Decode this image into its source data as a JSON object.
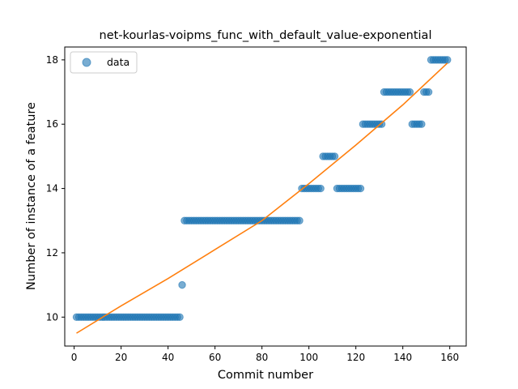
{
  "chart_data": {
    "type": "scatter",
    "title": "net-kourlas-voipms_func_with_default_value-exponential",
    "xlabel": "Commit number",
    "ylabel": "Number of instance of a feature",
    "xlim": [
      -4,
      167
    ],
    "ylim": [
      9.1,
      18.4
    ],
    "xticks": [
      0,
      20,
      40,
      60,
      80,
      100,
      120,
      140,
      160
    ],
    "yticks": [
      10,
      12,
      14,
      16,
      18
    ],
    "grid": false,
    "legend": {
      "placement": "top-left",
      "entries": [
        "data"
      ]
    },
    "colors": {
      "points": "#1f77b4",
      "fit": "#ff7f0e"
    },
    "series": [
      {
        "name": "data",
        "kind": "scatter",
        "segments": [
          {
            "x_from": 1,
            "x_to": 45,
            "y": 10
          },
          {
            "x_from": 46,
            "x_to": 46,
            "y": 11
          },
          {
            "x_from": 47,
            "x_to": 96,
            "y": 13
          },
          {
            "x_from": 97,
            "x_to": 105,
            "y": 14
          },
          {
            "x_from": 106,
            "x_to": 111,
            "y": 15
          },
          {
            "x_from": 112,
            "x_to": 122,
            "y": 14
          },
          {
            "x_from": 123,
            "x_to": 131,
            "y": 16
          },
          {
            "x_from": 132,
            "x_to": 143,
            "y": 17
          },
          {
            "x_from": 144,
            "x_to": 148,
            "y": 16
          },
          {
            "x_from": 149,
            "x_to": 151,
            "y": 17
          },
          {
            "x_from": 152,
            "x_to": 159,
            "y": 18
          }
        ]
      },
      {
        "kind": "line",
        "x": [
          1,
          20,
          40,
          60,
          80,
          100,
          120,
          140,
          159
        ],
        "y": [
          9.5,
          10.35,
          11.2,
          12.1,
          13.0,
          14.15,
          15.35,
          16.6,
          17.9
        ]
      }
    ]
  }
}
